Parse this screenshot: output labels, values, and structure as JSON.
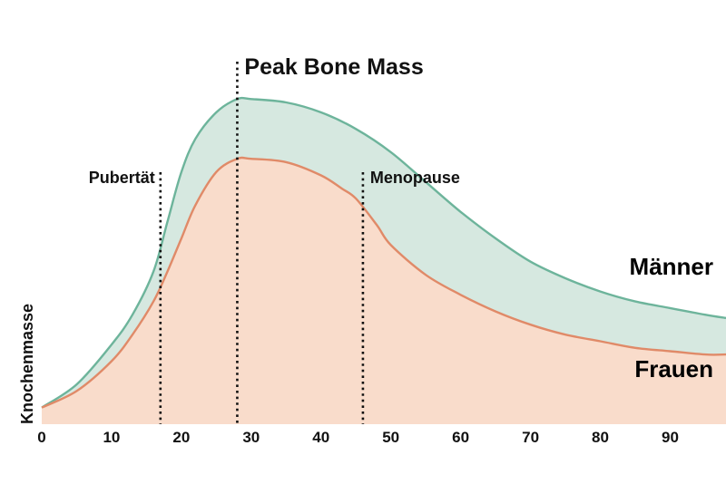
{
  "chart_data": {
    "type": "area",
    "title": "",
    "xlabel": "",
    "ylabel": "Knochenmasse",
    "xlim": [
      0,
      98
    ],
    "ylim": [
      0,
      100
    ],
    "xticks": [
      0,
      10,
      20,
      30,
      40,
      50,
      60,
      70,
      80,
      90
    ],
    "grid": false,
    "colors": {
      "maenner_line": "#6db49b",
      "maenner_fill": "#d6e8e0",
      "frauen_line": "#e08a68",
      "frauen_fill": "#f9dccb",
      "annotation": "#111111"
    },
    "series": [
      {
        "name": "Männer",
        "x": [
          0,
          5,
          10,
          13,
          16,
          18,
          20,
          22,
          25,
          28,
          30,
          35,
          40,
          45,
          50,
          55,
          60,
          65,
          70,
          75,
          80,
          85,
          90,
          95,
          98
        ],
        "y": [
          5,
          12,
          24,
          33,
          46,
          61,
          76,
          86,
          94,
          98,
          98,
          97,
          94,
          89,
          82,
          73,
          64,
          56,
          49,
          44,
          40,
          37,
          35,
          33,
          32
        ]
      },
      {
        "name": "Frauen",
        "x": [
          0,
          5,
          10,
          13,
          16,
          18,
          20,
          22,
          25,
          28,
          30,
          35,
          40,
          43,
          45,
          48,
          50,
          55,
          60,
          65,
          70,
          75,
          80,
          85,
          90,
          95,
          98
        ],
        "y": [
          5,
          10,
          19,
          27,
          37,
          46,
          56,
          66,
          76,
          80,
          80,
          79,
          75,
          71,
          68,
          60,
          54,
          45,
          39,
          34,
          30,
          27,
          25,
          23,
          22,
          21,
          21
        ]
      }
    ],
    "annotations": [
      {
        "label": "Pubertät",
        "x": 17
      },
      {
        "label": "Peak Bone Mass",
        "x": 28
      },
      {
        "label": "Menopause",
        "x": 46
      }
    ],
    "series_labels": [
      "Männer",
      "Frauen"
    ]
  }
}
